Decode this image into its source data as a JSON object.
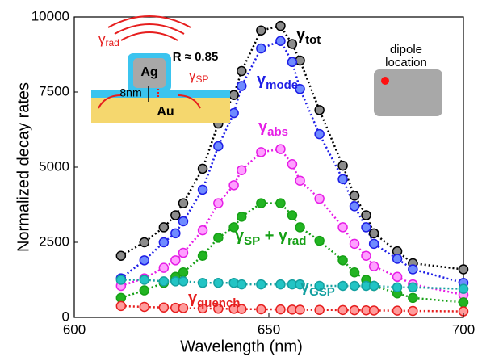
{
  "chart_data": {
    "type": "line",
    "xlabel": "Wavelength (nm)",
    "ylabel": "Normalized decay rates",
    "x": [
      612,
      618,
      623,
      626,
      628,
      633,
      637,
      641,
      643,
      648,
      653,
      656,
      658,
      663,
      669,
      672,
      675,
      677,
      683,
      687,
      700
    ],
    "xlim": [
      600,
      700
    ],
    "xticks": [
      600,
      650,
      700
    ],
    "ylim": [
      0,
      10000
    ],
    "yticks": [
      0,
      2500,
      5000,
      7500,
      10000
    ],
    "series": [
      {
        "label_parts": [
          "γ",
          "tot"
        ],
        "color": "#000000",
        "fill": "#8c8c8c",
        "values": [
          2050,
          2500,
          3000,
          3400,
          3800,
          4950,
          6450,
          7400,
          8200,
          9550,
          9700,
          9100,
          8550,
          6900,
          5050,
          4050,
          3400,
          2800,
          2200,
          1800,
          1600
        ]
      },
      {
        "label_parts": [
          "γ",
          "mode"
        ],
        "color": "#1e1ee6",
        "fill": "#6f8bff",
        "values": [
          1300,
          1900,
          2500,
          2800,
          3200,
          4250,
          5700,
          6800,
          7700,
          8950,
          9200,
          8500,
          7600,
          6100,
          4600,
          3700,
          3000,
          2450,
          1950,
          1600,
          1150
        ]
      },
      {
        "label_parts": [
          "γ",
          "abs"
        ],
        "color": "#e61ee6",
        "fill": "#ffa0ff",
        "values": [
          1050,
          1300,
          1650,
          1900,
          2150,
          2900,
          3800,
          4400,
          4900,
          5500,
          5600,
          5100,
          4550,
          3950,
          3000,
          2450,
          2050,
          1700,
          1350,
          1100,
          750
        ]
      },
      {
        "label_parts": [
          "γ",
          "SP",
          " + γ",
          "rad"
        ],
        "color": "#16a016",
        "fill": "#22b422",
        "values": [
          650,
          900,
          1150,
          1350,
          1500,
          2050,
          2650,
          3000,
          3350,
          3800,
          3800,
          3400,
          3000,
          2550,
          1900,
          1500,
          1250,
          1050,
          800,
          650,
          500
        ]
      },
      {
        "label_parts": [
          "γ",
          "GSP"
        ],
        "color": "#14a0a0",
        "fill": "#22c4c4",
        "values": [
          1250,
          1250,
          1200,
          1200,
          1200,
          1150,
          1150,
          1150,
          1100,
          1100,
          1100,
          1100,
          1100,
          1050,
          1050,
          1050,
          1050,
          1050,
          1000,
          1000,
          950
        ]
      },
      {
        "label_parts": [
          "γ",
          "quench"
        ],
        "color": "#e61e1e",
        "fill": "#ff9c9c",
        "values": [
          380,
          350,
          330,
          320,
          310,
          300,
          290,
          285,
          280,
          270,
          265,
          260,
          255,
          250,
          245,
          240,
          235,
          230,
          225,
          215,
          200
        ]
      }
    ],
    "inset": {
      "particle": "Ag",
      "substrate": "Au",
      "gap": "8nm",
      "reflectance": "R ≈ 0.85",
      "rad_label": [
        "γ",
        "rad"
      ],
      "sp_label": [
        "γ",
        "SP"
      ]
    },
    "dipole_panel": {
      "lines": [
        "dipole",
        "location"
      ]
    }
  }
}
